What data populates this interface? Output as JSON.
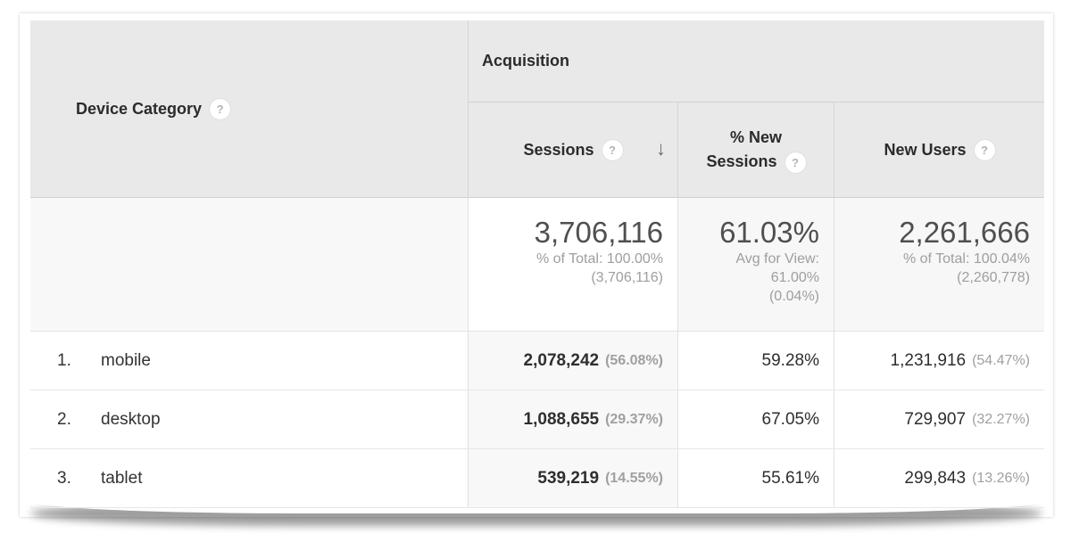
{
  "table": {
    "dimension_header": {
      "label": "Device Category"
    },
    "group_header": {
      "label": "Acquisition"
    },
    "columns": {
      "sessions": {
        "label": "Sessions",
        "sort": "descending"
      },
      "new_sessions": {
        "label_line1": "% New",
        "label_line2": "Sessions"
      },
      "new_users": {
        "label": "New Users"
      }
    },
    "icons": {
      "help_glyph": "?",
      "sort_desc_glyph": "↓"
    },
    "summary": {
      "sessions": {
        "value": "3,706,116",
        "line1": "% of Total: 100.00%",
        "line2": "(3,706,116)"
      },
      "new_sessions": {
        "value": "61.03%",
        "line1": "Avg for View:",
        "line2": "61.00%",
        "line3": "(0.04%)"
      },
      "new_users": {
        "value": "2,261,666",
        "line1": "% of Total: 100.04%",
        "line2": "(2,260,778)"
      }
    },
    "rows": [
      {
        "index": "1.",
        "label": "mobile",
        "sessions": "2,078,242",
        "sessions_pct": "(56.08%)",
        "new_sessions": "59.28%",
        "new_users": "1,231,916",
        "new_users_pct": "(54.47%)"
      },
      {
        "index": "2.",
        "label": "desktop",
        "sessions": "1,088,655",
        "sessions_pct": "(29.37%)",
        "new_sessions": "67.05%",
        "new_users": "729,907",
        "new_users_pct": "(32.27%)"
      },
      {
        "index": "3.",
        "label": "tablet",
        "sessions": "539,219",
        "sessions_pct": "(14.55%)",
        "new_sessions": "55.61%",
        "new_users": "299,843",
        "new_users_pct": "(13.26%)"
      }
    ],
    "colors": {
      "header_bg": "#e9e9e9",
      "sorted_column_bg": "#f8f8f8",
      "summary_muted_bg": "#f7f7f7",
      "primary_text": "#2e2e2e",
      "summary_value_text": "#4f4f4f",
      "muted_text": "#9e9e9e",
      "border": "#e0e0e0"
    }
  }
}
